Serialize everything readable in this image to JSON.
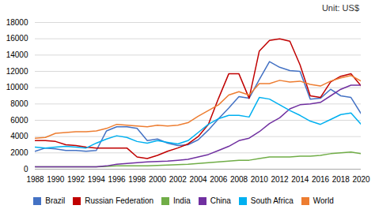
{
  "chart_data": {
    "type": "line",
    "title": "Unit: US$",
    "x": [
      1988,
      1989,
      1990,
      1991,
      1992,
      1993,
      1994,
      1995,
      1996,
      1997,
      1998,
      1999,
      2000,
      2001,
      2002,
      2003,
      2004,
      2005,
      2006,
      2007,
      2008,
      2009,
      2010,
      2011,
      2012,
      2013,
      2014,
      2015,
      2016,
      2017,
      2018,
      2019,
      2020
    ],
    "series": [
      {
        "name": "Brazil",
        "color": "#4472C4",
        "values": [
          2200,
          2600,
          2500,
          2300,
          2300,
          2200,
          2300,
          4700,
          5200,
          5200,
          5000,
          3500,
          3700,
          3200,
          2900,
          3000,
          3600,
          4800,
          6200,
          7500,
          8900,
          8700,
          11000,
          13200,
          12500,
          12100,
          12000,
          8600,
          8700,
          9800,
          9000,
          8800,
          6800
        ]
      },
      {
        "name": "Russian Federation",
        "color": "#C00000",
        "values": [
          3500,
          3500,
          3400,
          3000,
          2900,
          2700,
          2600,
          2600,
          2600,
          2600,
          1500,
          1300,
          1700,
          2200,
          2600,
          3100,
          4000,
          5500,
          8700,
          11700,
          11700,
          8700,
          14500,
          15800,
          16000,
          15700,
          12800,
          9000,
          8800,
          10700,
          11400,
          11700,
          10200
        ]
      },
      {
        "name": "India",
        "color": "#70AD47",
        "values": [
          300,
          300,
          300,
          300,
          300,
          300,
          300,
          350,
          400,
          400,
          400,
          400,
          450,
          500,
          550,
          600,
          700,
          800,
          900,
          1000,
          1100,
          1100,
          1300,
          1500,
          1500,
          1500,
          1600,
          1600,
          1700,
          1900,
          2000,
          2100,
          1900
        ]
      },
      {
        "name": "China",
        "color": "#7030A0",
        "values": [
          300,
          300,
          300,
          300,
          300,
          300,
          300,
          400,
          600,
          700,
          800,
          900,
          950,
          1000,
          1100,
          1200,
          1500,
          1800,
          2300,
          2800,
          3500,
          3800,
          4600,
          5600,
          6300,
          7400,
          7900,
          8000,
          8200,
          9000,
          9800,
          10300,
          10300
        ]
      },
      {
        "name": "South Africa",
        "color": "#00B0F0",
        "values": [
          2700,
          2600,
          2700,
          2800,
          2700,
          2600,
          3200,
          3700,
          4100,
          3900,
          3400,
          3200,
          3500,
          3300,
          3100,
          3500,
          4500,
          5500,
          6200,
          6600,
          6600,
          6400,
          8800,
          8600,
          7900,
          7200,
          6600,
          5900,
          5500,
          6100,
          6700,
          6900,
          5500
        ]
      },
      {
        "name": "World",
        "color": "#ED7D31",
        "values": [
          3800,
          3900,
          4400,
          4500,
          4600,
          4600,
          4700,
          5000,
          5500,
          5400,
          5300,
          5200,
          5400,
          5300,
          5400,
          5700,
          6500,
          7200,
          7900,
          9100,
          9500,
          9100,
          10500,
          10500,
          10900,
          10700,
          10800,
          10400,
          10200,
          10800,
          11200,
          11500,
          10800
        ]
      }
    ],
    "xlim": [
      1988,
      2020
    ],
    "xticks": [
      1988,
      1990,
      1992,
      1994,
      1996,
      1998,
      2000,
      2002,
      2004,
      2006,
      2008,
      2010,
      2012,
      2014,
      2016,
      2018,
      2020
    ],
    "ylim": [
      0,
      18000
    ],
    "yticks": [
      0,
      2000,
      4000,
      6000,
      8000,
      10000,
      12000,
      14000,
      16000,
      18000
    ],
    "grid": true,
    "legend": "bottom"
  }
}
